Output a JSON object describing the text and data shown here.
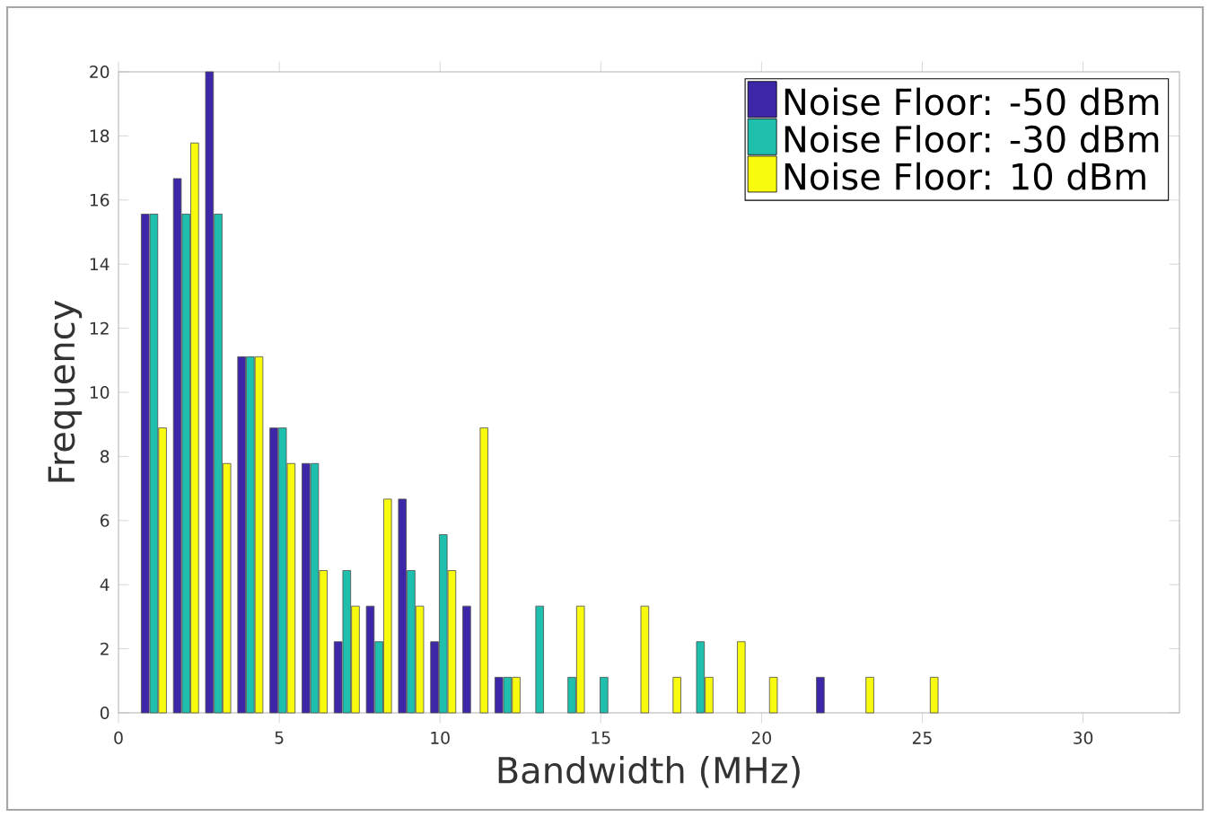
{
  "chart_data": {
    "type": "bar",
    "xlabel": "Bandwidth (MHz)",
    "ylabel": "Frequency",
    "x": [
      1.1,
      2.1,
      3.1,
      4.1,
      5.1,
      6.1,
      7.1,
      8.1,
      9.1,
      10.1,
      11.1,
      12.1,
      13.1,
      14.1,
      15.1,
      16.1,
      17.1,
      18.1,
      19.1,
      20.1,
      21.1,
      22.1,
      23.1,
      24.1,
      25.1
    ],
    "series": [
      {
        "name": "Noise Floor: -50 dBm",
        "color": "#3e26a8",
        "values": [
          15.56,
          16.67,
          20,
          11.11,
          8.89,
          7.78,
          2.22,
          3.33,
          6.67,
          2.22,
          3.33,
          1.11,
          0,
          0,
          0,
          0,
          0,
          0,
          0,
          0,
          0,
          1.11,
          0,
          0,
          0
        ]
      },
      {
        "name": "Noise Floor: -30 dBm",
        "color": "#1fbfad",
        "values": [
          15.56,
          15.56,
          15.56,
          11.11,
          8.89,
          7.78,
          4.44,
          2.22,
          4.44,
          5.56,
          0,
          1.11,
          3.33,
          1.11,
          1.11,
          0,
          0,
          2.22,
          0,
          0,
          0,
          0,
          0,
          0,
          0
        ]
      },
      {
        "name": "Noise Floor: 10 dBm",
        "color": "#f9fb0e",
        "values": [
          8.89,
          17.78,
          7.78,
          11.11,
          7.78,
          4.44,
          3.33,
          6.67,
          3.33,
          4.44,
          8.89,
          1.11,
          0,
          3.33,
          0,
          3.33,
          1.11,
          1.11,
          2.22,
          1.11,
          0,
          0,
          1.11,
          0,
          1.11
        ]
      }
    ],
    "xlim": [
      0,
      33
    ],
    "ylim": [
      0,
      20
    ],
    "xticks": [
      0,
      5,
      10,
      15,
      20,
      25,
      30
    ],
    "yticks": [
      0,
      2,
      4,
      6,
      8,
      10,
      12,
      14,
      16,
      18,
      20
    ],
    "grid": false,
    "legend": "top right"
  }
}
